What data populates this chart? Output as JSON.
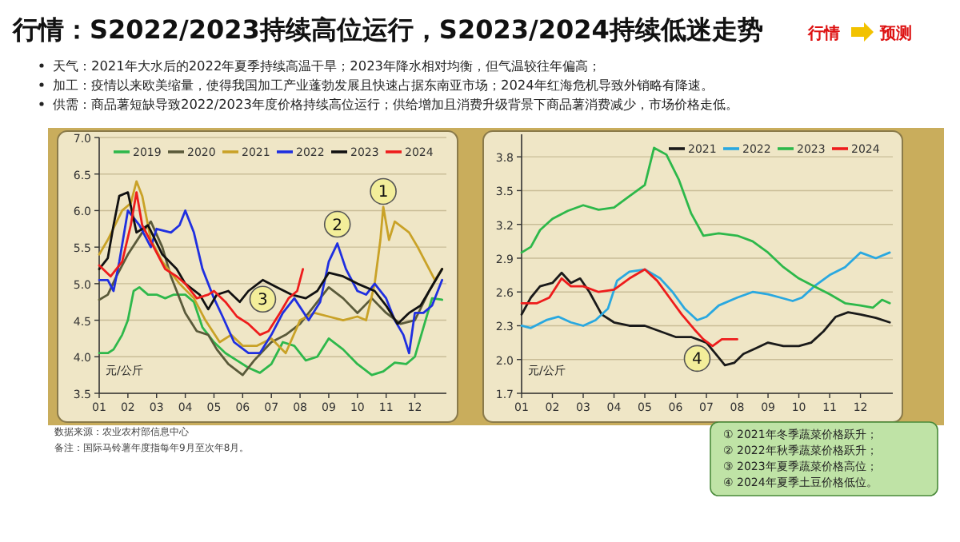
{
  "chart_data": [
    {
      "type": "line",
      "title": "行情：S2022/2023持续高位运行，S2023/2024持续低迷走势",
      "ylabel": "元/公斤",
      "grid": "y",
      "legend": "top",
      "line_style": "solid",
      "marker": "none",
      "xlim": [
        1,
        13.1
      ],
      "ylim": [
        3.5,
        7.0
      ],
      "xticks": [
        {
          "value": 1,
          "label": "01"
        },
        {
          "value": 2,
          "label": "02"
        },
        {
          "value": 3,
          "label": "03"
        },
        {
          "value": 4,
          "label": "04"
        },
        {
          "value": 5,
          "label": "05"
        },
        {
          "value": 6,
          "label": "06"
        },
        {
          "value": 7,
          "label": "07"
        },
        {
          "value": 8,
          "label": "08"
        },
        {
          "value": 9,
          "label": "09"
        },
        {
          "value": 10,
          "label": "10"
        },
        {
          "value": 11,
          "label": "11"
        },
        {
          "value": 12,
          "label": "12"
        }
      ],
      "yticks": [
        {
          "value": 3.5,
          "label": "3.5"
        },
        {
          "value": 4.0,
          "label": "4.0"
        },
        {
          "value": 4.5,
          "label": "4.5"
        },
        {
          "value": 5.0,
          "label": "5.0"
        },
        {
          "value": 5.5,
          "label": "5.5"
        },
        {
          "value": 6.0,
          "label": "6.0"
        },
        {
          "value": 6.5,
          "label": "6.5"
        },
        {
          "value": 7.0,
          "label": "7.0"
        }
      ],
      "annotations": [
        "天气：2021年大水后的2022年夏季持续高温干旱；2023年降水相对均衡，但气温较往年偏高；",
        "加工：疫情以来欧美缩量，使得我国加工产业蓬勃发展且快速占据东南亚市场；2024年红海危机导致外销略有降速。",
        "供需：商品薯短缺导致2022/2023年度价格持续高位运行；供给增加且消费升级背景下商品薯消费减少，市场价格走低。",
        "数据来源：农业农村部信息中心",
        "备注：国际马铃薯年度指每年9月至次年8月。",
        "行情",
        "预测",
        {
          "text": "1",
          "x": 10.9,
          "y": 6.0
        },
        {
          "text": "2",
          "x": 9.3,
          "y": 5.55
        },
        {
          "text": "3",
          "x": 6.7,
          "y": 5.05
        }
      ],
      "series": [
        {
          "name": "2019",
          "color": "#2eb84b",
          "x": [
            1.0,
            1.3,
            1.5,
            1.8,
            2.0,
            2.2,
            2.4,
            2.7,
            3.0,
            3.3,
            3.6,
            4.0,
            4.3,
            4.6,
            5.0,
            5.4,
            5.8,
            6.2,
            6.6,
            7.0,
            7.4,
            7.8,
            8.2,
            8.6,
            9.0,
            9.5,
            10.0,
            10.5,
            10.9,
            11.3,
            11.7,
            12.0,
            12.3,
            12.6,
            12.95
          ],
          "values": [
            4.05,
            4.05,
            4.1,
            4.3,
            4.5,
            4.9,
            4.95,
            4.85,
            4.85,
            4.8,
            4.85,
            4.85,
            4.75,
            4.4,
            4.2,
            4.05,
            3.95,
            3.85,
            3.78,
            3.9,
            4.2,
            4.15,
            3.95,
            4.0,
            4.25,
            4.1,
            3.9,
            3.75,
            3.8,
            3.92,
            3.9,
            4.0,
            4.4,
            4.8,
            4.78
          ]
        },
        {
          "name": "2020",
          "color": "#5a5a3a",
          "x": [
            1.0,
            1.3,
            1.6,
            2.0,
            2.5,
            2.8,
            3.2,
            3.5,
            4.0,
            4.4,
            4.8,
            5.1,
            5.5,
            6.0,
            6.4,
            7.0,
            7.5,
            8.0,
            8.5,
            9.0,
            9.5,
            10.0,
            10.5,
            11.0,
            11.5,
            12.0,
            12.5,
            12.95
          ],
          "values": [
            4.78,
            4.85,
            5.1,
            5.4,
            5.7,
            5.85,
            5.5,
            5.1,
            4.6,
            4.35,
            4.3,
            4.1,
            3.9,
            3.75,
            3.95,
            4.2,
            4.3,
            4.45,
            4.7,
            4.95,
            4.8,
            4.6,
            4.8,
            4.6,
            4.45,
            4.5,
            4.9,
            5.2
          ]
        },
        {
          "name": "2021",
          "color": "#c9a227",
          "x": [
            1.0,
            1.3,
            1.8,
            2.1,
            2.3,
            2.5,
            2.8,
            3.2,
            3.8,
            4.3,
            4.7,
            5.2,
            5.6,
            6.0,
            6.5,
            7.0,
            7.5,
            8.0,
            8.5,
            9.0,
            9.5,
            10.0,
            10.3,
            10.6,
            10.8,
            10.9,
            11.1,
            11.3,
            11.8,
            12.1,
            12.5,
            12.7,
            12.95
          ],
          "values": [
            5.4,
            5.6,
            6.0,
            6.1,
            6.4,
            6.2,
            5.6,
            5.3,
            5.0,
            4.8,
            4.5,
            4.2,
            4.3,
            4.15,
            4.15,
            4.25,
            4.05,
            4.5,
            4.6,
            4.55,
            4.5,
            4.55,
            4.5,
            5.0,
            5.6,
            6.05,
            5.6,
            5.85,
            5.7,
            5.5,
            5.2,
            5.05,
            5.2
          ]
        },
        {
          "name": "2022",
          "color": "#1f2fe0",
          "x": [
            1.0,
            1.3,
            1.5,
            1.7,
            2.0,
            2.4,
            2.8,
            3.0,
            3.5,
            3.8,
            4.0,
            4.3,
            4.6,
            5.0,
            5.3,
            5.7,
            6.2,
            6.6,
            7.0,
            7.4,
            7.8,
            8.3,
            8.7,
            9.0,
            9.3,
            9.6,
            10.0,
            10.3,
            10.6,
            11.0,
            11.3,
            11.6,
            11.8,
            12.0,
            12.3,
            12.6,
            12.95
          ],
          "values": [
            5.05,
            5.05,
            4.9,
            5.3,
            6.0,
            5.8,
            5.5,
            5.75,
            5.7,
            5.8,
            6.0,
            5.7,
            5.2,
            4.8,
            4.55,
            4.2,
            4.05,
            4.05,
            4.3,
            4.6,
            4.8,
            4.5,
            4.75,
            5.3,
            5.55,
            5.2,
            4.9,
            4.85,
            5.0,
            4.8,
            4.5,
            4.3,
            4.05,
            4.6,
            4.6,
            4.7,
            5.05
          ]
        },
        {
          "name": "2023",
          "color": "#111111",
          "x": [
            1.0,
            1.3,
            1.5,
            1.7,
            2.0,
            2.3,
            2.7,
            3.2,
            3.7,
            4.0,
            4.5,
            4.8,
            5.1,
            5.5,
            5.9,
            6.2,
            6.7,
            7.2,
            7.7,
            8.2,
            8.6,
            9.0,
            9.5,
            10.0,
            10.6,
            11.0,
            11.4,
            11.8,
            12.2,
            12.5,
            12.95
          ],
          "values": [
            5.2,
            5.35,
            5.8,
            6.2,
            6.25,
            5.7,
            5.8,
            5.4,
            5.2,
            5.0,
            4.85,
            4.65,
            4.85,
            4.9,
            4.75,
            4.9,
            5.05,
            4.95,
            4.85,
            4.8,
            4.9,
            5.15,
            5.1,
            5.0,
            4.9,
            4.7,
            4.45,
            4.6,
            4.7,
            4.9,
            5.2
          ]
        },
        {
          "name": "2024",
          "color": "#ee1c1c",
          "x": [
            1.0,
            1.4,
            1.8,
            2.1,
            2.3,
            2.5,
            2.9,
            3.3,
            3.7,
            4.0,
            4.4,
            4.8,
            5.0,
            5.4,
            5.8,
            6.2,
            6.6,
            6.9,
            7.3,
            7.6,
            7.9,
            8.1
          ],
          "values": [
            5.25,
            5.1,
            5.3,
            5.8,
            6.25,
            5.8,
            5.5,
            5.2,
            5.1,
            5.0,
            4.8,
            4.85,
            4.9,
            4.75,
            4.55,
            4.45,
            4.3,
            4.35,
            4.6,
            4.8,
            4.9,
            5.2
          ]
        }
      ]
    },
    {
      "type": "line",
      "ylabel": "元/公斤",
      "grid": "y",
      "legend": "top",
      "line_style": "solid",
      "marker": "none",
      "xlim": [
        1,
        13.05
      ],
      "ylim": [
        1.7,
        4.0
      ],
      "xticks": [
        {
          "value": 1,
          "label": "01"
        },
        {
          "value": 2,
          "label": "02"
        },
        {
          "value": 3,
          "label": "03"
        },
        {
          "value": 4,
          "label": "04"
        },
        {
          "value": 5,
          "label": "05"
        },
        {
          "value": 6,
          "label": "06"
        },
        {
          "value": 7,
          "label": "07"
        },
        {
          "value": 8,
          "label": "08"
        },
        {
          "value": 9,
          "label": "09"
        },
        {
          "value": 10,
          "label": "10"
        },
        {
          "value": 11,
          "label": "11"
        },
        {
          "value": 12,
          "label": "12"
        }
      ],
      "yticks": [
        {
          "value": 1.7,
          "label": "1.7"
        },
        {
          "value": 2.0,
          "label": "2.0"
        },
        {
          "value": 2.3,
          "label": "2.3"
        },
        {
          "value": 2.6,
          "label": "2.6"
        },
        {
          "value": 2.9,
          "label": "2.9"
        },
        {
          "value": 3.2,
          "label": "3.2"
        },
        {
          "value": 3.5,
          "label": "3.5"
        },
        {
          "value": 3.8,
          "label": "3.8"
        }
      ],
      "annotations": [
        {
          "text": "4",
          "x": 6.7,
          "y": 2.18
        },
        "① 2021年冬季蔬菜价格跃升；",
        "② 2022年秋季蔬菜价格跃升；",
        "③ 2023年夏季蔬菜价格高位；",
        "④ 2024年夏季土豆价格低位。"
      ],
      "series": [
        {
          "name": "2021",
          "color": "#1a1a1a",
          "x": [
            1.0,
            1.3,
            1.6,
            2.0,
            2.3,
            2.6,
            2.9,
            3.2,
            3.6,
            4.0,
            4.5,
            5.0,
            5.5,
            6.0,
            6.5,
            7.0,
            7.3,
            7.6,
            7.9,
            8.2,
            8.6,
            9.0,
            9.5,
            10.0,
            10.4,
            10.8,
            11.2,
            11.6,
            12.0,
            12.5,
            12.95
          ],
          "values": [
            2.4,
            2.55,
            2.65,
            2.68,
            2.77,
            2.68,
            2.72,
            2.6,
            2.4,
            2.33,
            2.3,
            2.3,
            2.25,
            2.2,
            2.2,
            2.15,
            2.05,
            1.95,
            1.97,
            2.05,
            2.1,
            2.15,
            2.12,
            2.12,
            2.15,
            2.25,
            2.38,
            2.42,
            2.4,
            2.37,
            2.33
          ]
        },
        {
          "name": "2022",
          "color": "#29a8e0",
          "x": [
            1.0,
            1.3,
            1.8,
            2.2,
            2.6,
            3.0,
            3.4,
            3.8,
            4.1,
            4.5,
            5.0,
            5.5,
            5.9,
            6.3,
            6.7,
            7.0,
            7.4,
            8.0,
            8.5,
            9.0,
            9.4,
            9.8,
            10.1,
            10.5,
            11.0,
            11.5,
            12.0,
            12.5,
            12.95
          ],
          "values": [
            2.3,
            2.28,
            2.35,
            2.38,
            2.33,
            2.3,
            2.35,
            2.45,
            2.7,
            2.78,
            2.8,
            2.72,
            2.6,
            2.45,
            2.35,
            2.38,
            2.48,
            2.55,
            2.6,
            2.58,
            2.55,
            2.52,
            2.55,
            2.65,
            2.75,
            2.82,
            2.95,
            2.9,
            2.95
          ]
        },
        {
          "name": "2023",
          "color": "#2db84a",
          "x": [
            1.0,
            1.3,
            1.6,
            2.0,
            2.5,
            3.0,
            3.5,
            4.0,
            4.5,
            5.0,
            5.3,
            5.7,
            6.1,
            6.5,
            6.9,
            7.4,
            8.0,
            8.5,
            9.0,
            9.5,
            10.0,
            10.5,
            11.0,
            11.5,
            12.0,
            12.4,
            12.7,
            12.95
          ],
          "values": [
            2.95,
            3.0,
            3.15,
            3.25,
            3.32,
            3.37,
            3.33,
            3.35,
            3.45,
            3.55,
            3.88,
            3.82,
            3.6,
            3.3,
            3.1,
            3.12,
            3.1,
            3.05,
            2.95,
            2.82,
            2.72,
            2.65,
            2.58,
            2.5,
            2.48,
            2.46,
            2.53,
            2.5
          ]
        },
        {
          "name": "2024",
          "color": "#ee1c1c",
          "x": [
            1.0,
            1.5,
            1.9,
            2.3,
            2.6,
            3.0,
            3.5,
            4.0,
            4.5,
            5.0,
            5.4,
            5.8,
            6.2,
            6.6,
            6.9,
            7.2,
            7.5,
            8.0
          ],
          "values": [
            2.5,
            2.5,
            2.55,
            2.72,
            2.65,
            2.65,
            2.6,
            2.62,
            2.72,
            2.8,
            2.7,
            2.55,
            2.4,
            2.27,
            2.18,
            2.12,
            2.18,
            2.18
          ]
        }
      ]
    }
  ]
}
